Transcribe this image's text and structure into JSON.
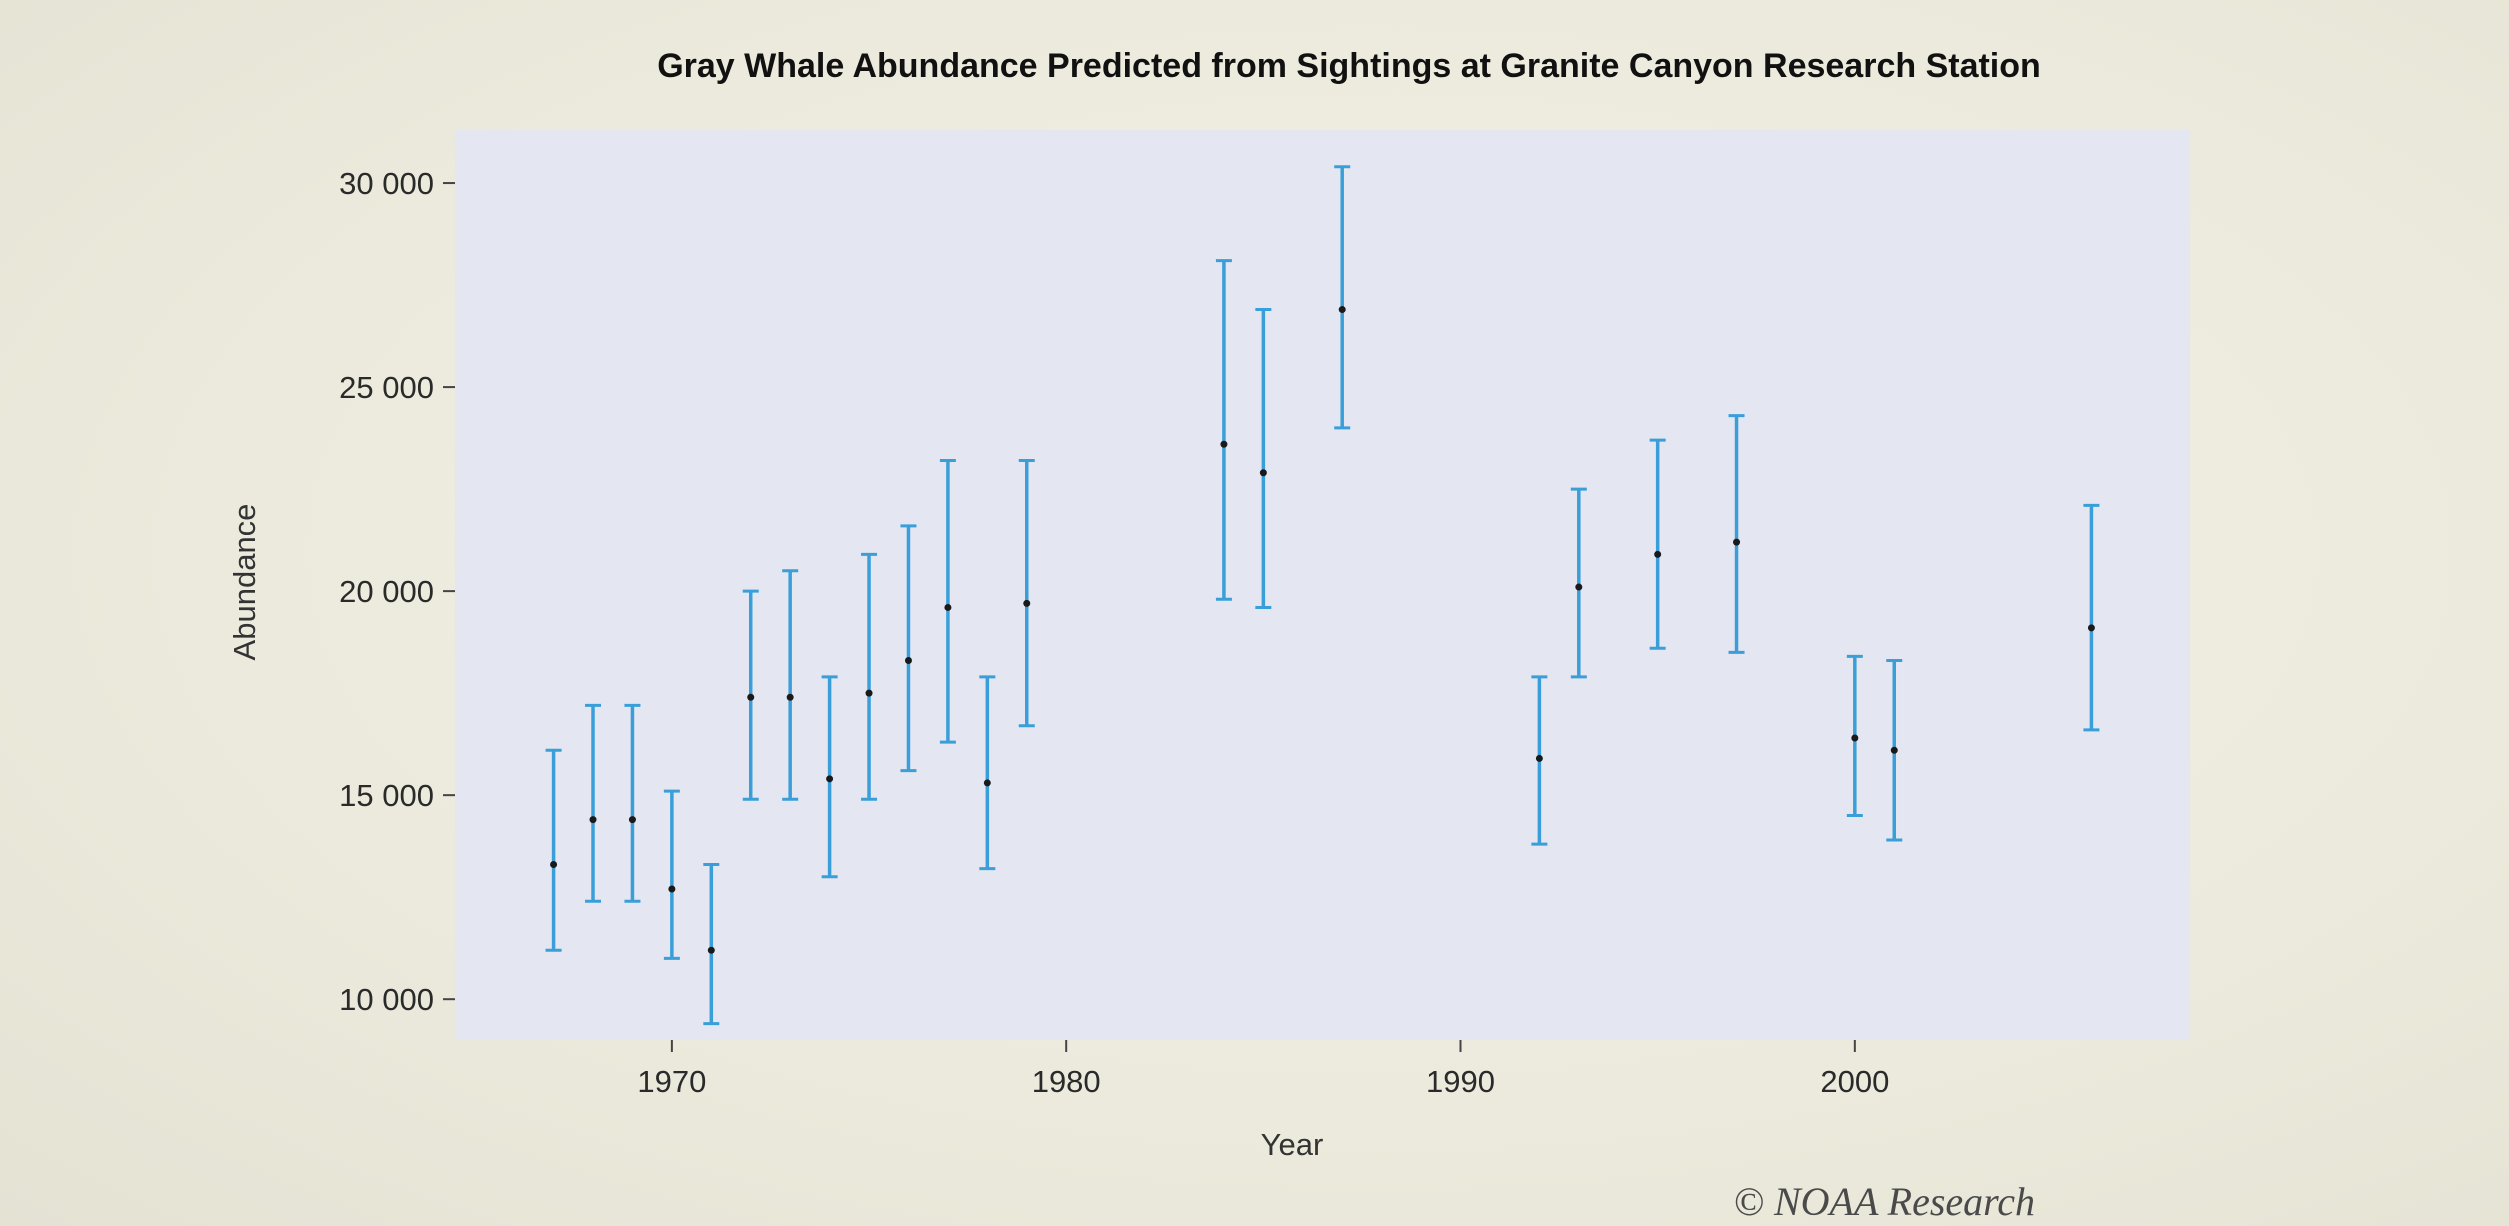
{
  "chart_data": {
    "type": "errorbar",
    "title": "Gray Whale Abundance Predicted from Sightings at Granite Canyon Research Station",
    "xlabel": "Year",
    "ylabel": "Abundance",
    "xlim": [
      1964.5,
      2008.5
    ],
    "ylim": [
      9000,
      31300
    ],
    "x_ticks": [
      1970,
      1980,
      1990,
      2000
    ],
    "x_tick_labels": [
      "1970",
      "1980",
      "1990",
      "2000"
    ],
    "y_ticks": [
      10000,
      15000,
      20000,
      25000,
      30000
    ],
    "y_tick_labels": [
      "10 000",
      "15 000",
      "20 000",
      "25 000",
      "30 000"
    ],
    "grid": false,
    "panel_background": "#e4e6f2",
    "colors": {
      "error_bar": "#3a9fd8",
      "point": "#1a1a1a"
    },
    "points": [
      {
        "x": 1967,
        "y": 13300,
        "lower": 11200,
        "upper": 16100
      },
      {
        "x": 1968,
        "y": 14400,
        "lower": 12400,
        "upper": 17200
      },
      {
        "x": 1969,
        "y": 14400,
        "lower": 12400,
        "upper": 17200
      },
      {
        "x": 1970,
        "y": 12700,
        "lower": 11000,
        "upper": 15100
      },
      {
        "x": 1971,
        "y": 11200,
        "lower": 9400,
        "upper": 13300
      },
      {
        "x": 1972,
        "y": 17400,
        "lower": 14900,
        "upper": 20000
      },
      {
        "x": 1973,
        "y": 17400,
        "lower": 14900,
        "upper": 20500
      },
      {
        "x": 1974,
        "y": 15400,
        "lower": 13000,
        "upper": 17900
      },
      {
        "x": 1975,
        "y": 17500,
        "lower": 14900,
        "upper": 20900
      },
      {
        "x": 1976,
        "y": 18300,
        "lower": 15600,
        "upper": 21600
      },
      {
        "x": 1977,
        "y": 19600,
        "lower": 16300,
        "upper": 23200
      },
      {
        "x": 1978,
        "y": 15300,
        "lower": 13200,
        "upper": 17900
      },
      {
        "x": 1979,
        "y": 19700,
        "lower": 16700,
        "upper": 23200
      },
      {
        "x": 1984,
        "y": 23600,
        "lower": 19800,
        "upper": 28100
      },
      {
        "x": 1985,
        "y": 22900,
        "lower": 19600,
        "upper": 26900
      },
      {
        "x": 1987,
        "y": 26900,
        "lower": 24000,
        "upper": 30400
      },
      {
        "x": 1992,
        "y": 15900,
        "lower": 13800,
        "upper": 17900
      },
      {
        "x": 1993,
        "y": 20100,
        "lower": 17900,
        "upper": 22500
      },
      {
        "x": 1995,
        "y": 20900,
        "lower": 18600,
        "upper": 23700
      },
      {
        "x": 1997,
        "y": 21200,
        "lower": 18500,
        "upper": 24300
      },
      {
        "x": 2000,
        "y": 16400,
        "lower": 14500,
        "upper": 18400
      },
      {
        "x": 2001,
        "y": 16100,
        "lower": 13900,
        "upper": 18300
      },
      {
        "x": 2006,
        "y": 19100,
        "lower": 16600,
        "upper": 22100
      }
    ]
  },
  "credit": "© NOAA Research"
}
